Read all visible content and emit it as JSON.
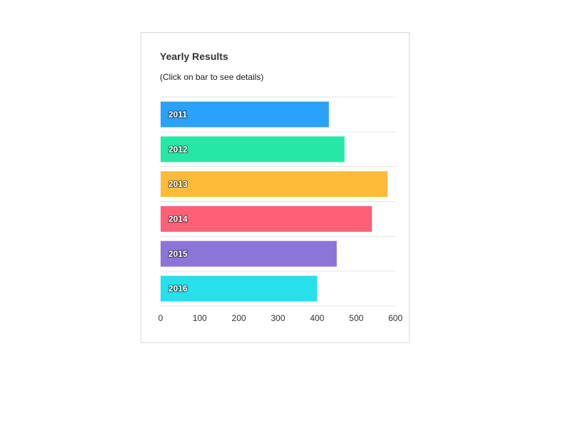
{
  "chart_data": {
    "type": "bar",
    "orientation": "horizontal",
    "title": "Yearly Results",
    "subtitle": "(Click on bar to see details)",
    "categories": [
      "2011",
      "2012",
      "2013",
      "2014",
      "2015",
      "2016"
    ],
    "values": [
      430,
      470,
      580,
      540,
      450,
      400
    ],
    "colors": [
      "#2aa1fb",
      "#26e7a6",
      "#febb3b",
      "#ff6078",
      "#8b75d7",
      "#26e0eb"
    ],
    "xlim": [
      0,
      600
    ],
    "xticks": [
      0,
      100,
      200,
      300,
      400,
      500,
      600
    ],
    "grid": true,
    "legend": "none"
  }
}
